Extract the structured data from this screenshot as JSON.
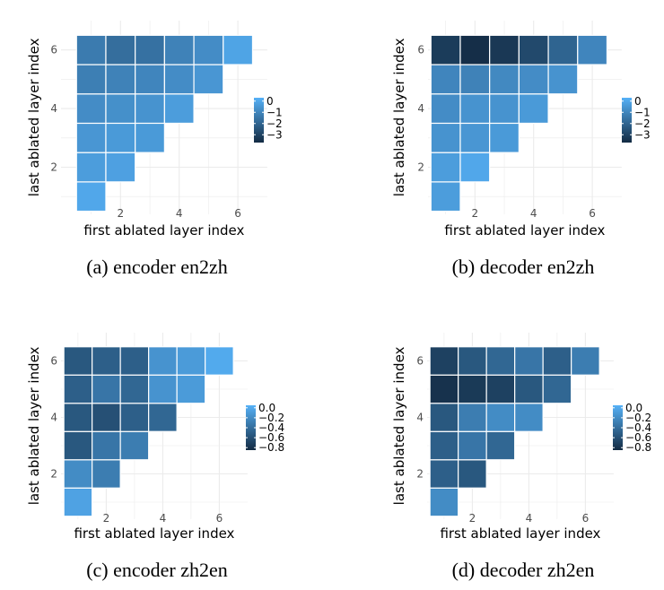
{
  "chart_data": [
    {
      "type": "heatmap",
      "caption": "(a) encoder en2zh",
      "xlabel": "first ablated layer index",
      "ylabel": "last ablated layer index",
      "x_ticks": [
        "2",
        "4",
        "6"
      ],
      "y_ticks": [
        "2",
        "4",
        "6"
      ],
      "legend_ticks": [
        {
          "value": 0,
          "label": "0"
        },
        {
          "value": -1,
          "label": "−1"
        },
        {
          "value": -2,
          "label": "−2"
        },
        {
          "value": -3,
          "label": "−3"
        }
      ],
      "color_range": [
        -3.7,
        0.3
      ],
      "low_color": "#132B43",
      "high_color": "#56B1F7",
      "cells": [
        {
          "x": 1,
          "y": 1,
          "value": 0.0
        },
        {
          "x": 1,
          "y": 2,
          "value": -0.3
        },
        {
          "x": 2,
          "y": 2,
          "value": -0.2
        },
        {
          "x": 1,
          "y": 3,
          "value": -0.5
        },
        {
          "x": 2,
          "y": 3,
          "value": -0.4
        },
        {
          "x": 3,
          "y": 3,
          "value": -0.4
        },
        {
          "x": 1,
          "y": 4,
          "value": -0.8
        },
        {
          "x": 2,
          "y": 4,
          "value": -0.7
        },
        {
          "x": 3,
          "y": 4,
          "value": -0.6
        },
        {
          "x": 4,
          "y": 4,
          "value": -0.3
        },
        {
          "x": 1,
          "y": 5,
          "value": -1.2
        },
        {
          "x": 2,
          "y": 5,
          "value": -1.1
        },
        {
          "x": 3,
          "y": 5,
          "value": -1.0
        },
        {
          "x": 4,
          "y": 5,
          "value": -0.8
        },
        {
          "x": 5,
          "y": 5,
          "value": -0.5
        },
        {
          "x": 1,
          "y": 6,
          "value": -1.3
        },
        {
          "x": 2,
          "y": 6,
          "value": -1.7
        },
        {
          "x": 3,
          "y": 6,
          "value": -1.6
        },
        {
          "x": 4,
          "y": 6,
          "value": -1.1
        },
        {
          "x": 5,
          "y": 6,
          "value": -0.8
        },
        {
          "x": 6,
          "y": 6,
          "value": -0.1
        }
      ]
    },
    {
      "type": "heatmap",
      "caption": "(b) decoder en2zh",
      "xlabel": "first ablated layer index",
      "ylabel": "last ablated layer index",
      "x_ticks": [
        "2",
        "4",
        "6"
      ],
      "y_ticks": [
        "2",
        "4",
        "6"
      ],
      "legend_ticks": [
        {
          "value": 0,
          "label": "0"
        },
        {
          "value": -1,
          "label": "−1"
        },
        {
          "value": -2,
          "label": "−2"
        },
        {
          "value": -3,
          "label": "−3"
        }
      ],
      "color_range": [
        -3.7,
        0.3
      ],
      "low_color": "#132B43",
      "high_color": "#56B1F7",
      "cells": [
        {
          "x": 1,
          "y": 1,
          "value": -0.3
        },
        {
          "x": 1,
          "y": 2,
          "value": -0.3
        },
        {
          "x": 2,
          "y": 2,
          "value": 0.0
        },
        {
          "x": 1,
          "y": 3,
          "value": -0.6
        },
        {
          "x": 2,
          "y": 3,
          "value": -0.5
        },
        {
          "x": 3,
          "y": 3,
          "value": -0.4
        },
        {
          "x": 1,
          "y": 4,
          "value": -0.8
        },
        {
          "x": 2,
          "y": 4,
          "value": -0.6
        },
        {
          "x": 3,
          "y": 4,
          "value": -0.6
        },
        {
          "x": 4,
          "y": 4,
          "value": -0.4
        },
        {
          "x": 1,
          "y": 5,
          "value": -1.0
        },
        {
          "x": 2,
          "y": 5,
          "value": -1.1
        },
        {
          "x": 3,
          "y": 5,
          "value": -0.9
        },
        {
          "x": 4,
          "y": 5,
          "value": -0.8
        },
        {
          "x": 5,
          "y": 5,
          "value": -0.6
        },
        {
          "x": 1,
          "y": 6,
          "value": -3.2
        },
        {
          "x": 2,
          "y": 6,
          "value": -3.6
        },
        {
          "x": 3,
          "y": 6,
          "value": -3.3
        },
        {
          "x": 4,
          "y": 6,
          "value": -2.8
        },
        {
          "x": 5,
          "y": 6,
          "value": -2.0
        },
        {
          "x": 6,
          "y": 6,
          "value": -1.0
        }
      ]
    },
    {
      "type": "heatmap",
      "caption": "(c) encoder zh2en",
      "xlabel": "first ablated layer index",
      "ylabel": "last ablated layer index",
      "x_ticks": [
        "2",
        "4",
        "6"
      ],
      "y_ticks": [
        "2",
        "4",
        "6"
      ],
      "legend_ticks": [
        {
          "value": 0.0,
          "label": "0.0"
        },
        {
          "value": -0.2,
          "label": "−0.2"
        },
        {
          "value": -0.4,
          "label": "−0.4"
        },
        {
          "value": -0.6,
          "label": "−0.6"
        },
        {
          "value": -0.8,
          "label": "−0.8"
        }
      ],
      "color_range": [
        -0.85,
        0.05
      ],
      "low_color": "#132B43",
      "high_color": "#56B1F7",
      "cells": [
        {
          "x": 1,
          "y": 1,
          "value": -0.05
        },
        {
          "x": 1,
          "y": 2,
          "value": -0.2
        },
        {
          "x": 2,
          "y": 2,
          "value": -0.3
        },
        {
          "x": 1,
          "y": 3,
          "value": -0.55
        },
        {
          "x": 2,
          "y": 3,
          "value": -0.35
        },
        {
          "x": 3,
          "y": 3,
          "value": -0.3
        },
        {
          "x": 1,
          "y": 4,
          "value": -0.55
        },
        {
          "x": 2,
          "y": 4,
          "value": -0.6
        },
        {
          "x": 3,
          "y": 4,
          "value": -0.5
        },
        {
          "x": 4,
          "y": 4,
          "value": -0.45
        },
        {
          "x": 1,
          "y": 5,
          "value": -0.5
        },
        {
          "x": 2,
          "y": 5,
          "value": -0.35
        },
        {
          "x": 3,
          "y": 5,
          "value": -0.45
        },
        {
          "x": 4,
          "y": 5,
          "value": -0.15
        },
        {
          "x": 5,
          "y": 5,
          "value": -0.1
        },
        {
          "x": 1,
          "y": 6,
          "value": -0.55
        },
        {
          "x": 2,
          "y": 6,
          "value": -0.5
        },
        {
          "x": 3,
          "y": 6,
          "value": -0.5
        },
        {
          "x": 4,
          "y": 6,
          "value": -0.15
        },
        {
          "x": 5,
          "y": 6,
          "value": -0.1
        },
        {
          "x": 6,
          "y": 6,
          "value": 0.0
        }
      ]
    },
    {
      "type": "heatmap",
      "caption": "(d) decoder zh2en",
      "xlabel": "first ablated layer index",
      "ylabel": "last ablated layer index",
      "x_ticks": [
        "2",
        "4",
        "6"
      ],
      "y_ticks": [
        "2",
        "4",
        "6"
      ],
      "legend_ticks": [
        {
          "value": 0.0,
          "label": "0.0"
        },
        {
          "value": -0.2,
          "label": "−0.2"
        },
        {
          "value": -0.4,
          "label": "−0.4"
        },
        {
          "value": -0.6,
          "label": "−0.6"
        },
        {
          "value": -0.8,
          "label": "−0.8"
        }
      ],
      "color_range": [
        -0.85,
        0.05
      ],
      "low_color": "#132B43",
      "high_color": "#56B1F7",
      "cells": [
        {
          "x": 1,
          "y": 1,
          "value": -0.2
        },
        {
          "x": 1,
          "y": 2,
          "value": -0.5
        },
        {
          "x": 2,
          "y": 2,
          "value": -0.55
        },
        {
          "x": 1,
          "y": 3,
          "value": -0.5
        },
        {
          "x": 2,
          "y": 3,
          "value": -0.35
        },
        {
          "x": 3,
          "y": 3,
          "value": -0.45
        },
        {
          "x": 1,
          "y": 4,
          "value": -0.55
        },
        {
          "x": 2,
          "y": 4,
          "value": -0.3
        },
        {
          "x": 3,
          "y": 4,
          "value": -0.2
        },
        {
          "x": 4,
          "y": 4,
          "value": -0.2
        },
        {
          "x": 1,
          "y": 5,
          "value": -0.8
        },
        {
          "x": 2,
          "y": 5,
          "value": -0.75
        },
        {
          "x": 3,
          "y": 5,
          "value": -0.7
        },
        {
          "x": 4,
          "y": 5,
          "value": -0.55
        },
        {
          "x": 5,
          "y": 5,
          "value": -0.45
        },
        {
          "x": 1,
          "y": 6,
          "value": -0.7
        },
        {
          "x": 2,
          "y": 6,
          "value": -0.55
        },
        {
          "x": 3,
          "y": 6,
          "value": -0.45
        },
        {
          "x": 4,
          "y": 6,
          "value": -0.35
        },
        {
          "x": 5,
          "y": 6,
          "value": -0.5
        },
        {
          "x": 6,
          "y": 6,
          "value": -0.3
        }
      ]
    }
  ]
}
